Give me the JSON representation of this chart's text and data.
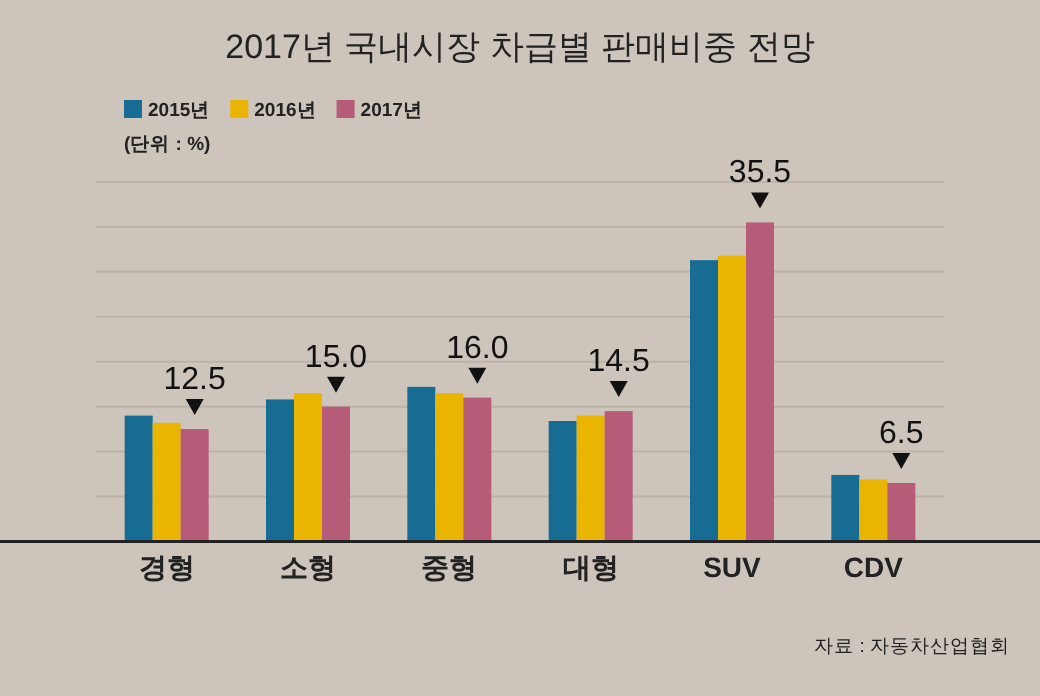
{
  "chart_data": {
    "type": "bar",
    "title": "2017년 국내시장 차급별 판매비중 전망",
    "categories": [
      "경형",
      "소형",
      "중형",
      "대형",
      "SUV",
      "CDV"
    ],
    "series": [
      {
        "name": "2015년",
        "color": "#176c93",
        "values": [
          14.0,
          15.8,
          17.2,
          13.4,
          31.3,
          7.4
        ]
      },
      {
        "name": "2016년",
        "color": "#e9b500",
        "values": [
          13.2,
          16.5,
          16.5,
          14.0,
          31.8,
          6.9
        ]
      },
      {
        "name": "2017년",
        "color": "#b65b78",
        "values": [
          12.5,
          15.0,
          16.0,
          14.5,
          35.5,
          6.5
        ],
        "value_labels": [
          "12.5",
          "15.0",
          "16.0",
          "14.5",
          "35.5",
          "6.5"
        ]
      }
    ],
    "ylim": [
      0,
      40
    ],
    "yticks": [
      {
        "value": 5,
        "label": null
      },
      {
        "value": 10,
        "label": null
      },
      {
        "value": 15,
        "label": null
      },
      {
        "value": 20,
        "label": null
      },
      {
        "value": 25,
        "label": null
      },
      {
        "value": 30,
        "label": null
      },
      {
        "value": 35,
        "label": null
      },
      {
        "value": 40,
        "label": null
      }
    ],
    "grid": "y",
    "legend": "top left",
    "annotations": [
      "(단위 : %)",
      "자료 : 자동차산업협회"
    ]
  }
}
